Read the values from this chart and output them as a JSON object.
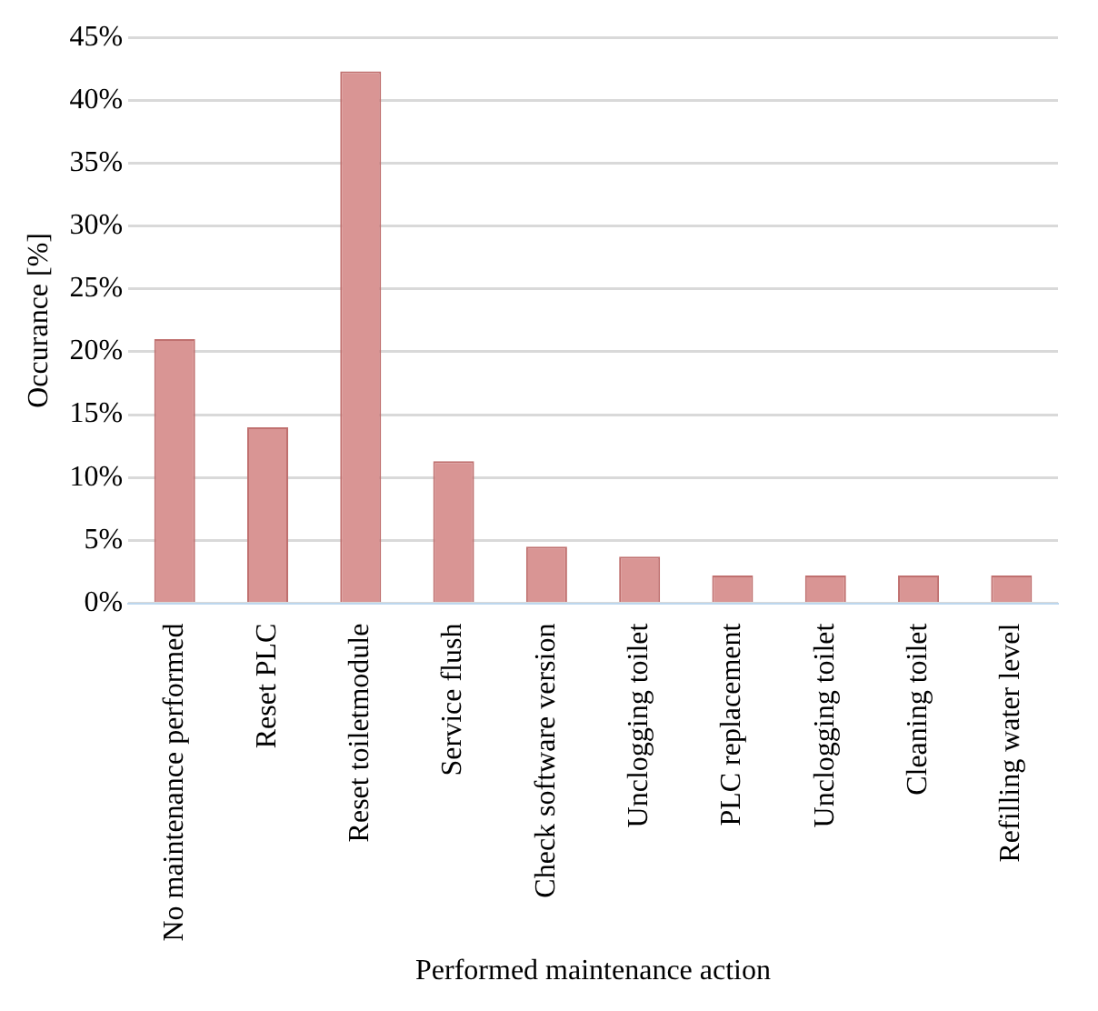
{
  "chart_data": {
    "type": "bar",
    "xlabel": "Performed maintenance action",
    "ylabel": "Occurance [%]",
    "categories": [
      "No maintenance performed",
      "Reset PLC",
      "Reset toiletmodule",
      "Service flush",
      "Check software version",
      "Unclogging toilet",
      "PLC replacement",
      "Unclogging toilet",
      "Cleaning toilet",
      "Refilling water level"
    ],
    "values": [
      21,
      14,
      42.3,
      11.3,
      4.5,
      3.7,
      2.2,
      2.2,
      2.2,
      2.2
    ],
    "color": "#d99594",
    "ylim": [
      0,
      45
    ],
    "yticks": [
      {
        "value": 0,
        "label": "0%"
      },
      {
        "value": 5,
        "label": "5%"
      },
      {
        "value": 10,
        "label": "10%"
      },
      {
        "value": 15,
        "label": "15%"
      },
      {
        "value": 20,
        "label": "20%"
      },
      {
        "value": 25,
        "label": "25%"
      },
      {
        "value": 30,
        "label": "30%"
      },
      {
        "value": 35,
        "label": "35%"
      },
      {
        "value": 40,
        "label": "40%"
      },
      {
        "value": 45,
        "label": "45%"
      }
    ],
    "grid": "y"
  }
}
